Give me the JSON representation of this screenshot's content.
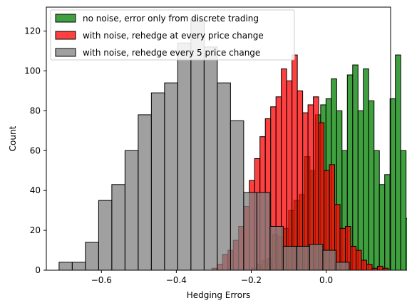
{
  "chart_data": {
    "type": "bar",
    "title": "",
    "xlabel": "Hedging Errors",
    "ylabel": "Count",
    "xlim": [
      -0.747,
      0.172
    ],
    "ylim": [
      0,
      132
    ],
    "xticks": [
      -0.6,
      -0.4,
      -0.2,
      0.0
    ],
    "xtick_labels": [
      "−0.6",
      "−0.4",
      "−0.2",
      "0.0"
    ],
    "yticks": [
      0,
      20,
      40,
      60,
      80,
      100,
      120
    ],
    "ytick_labels": [
      "0",
      "20",
      "40",
      "60",
      "80",
      "100",
      "120"
    ],
    "grid": false,
    "legend_position": "top-left",
    "series": [
      {
        "name": "no noise, error only from discrete trading",
        "color": "#008000",
        "bin_start": -0.2,
        "bin_width": 0.01425,
        "values": [
          1,
          3,
          5,
          6,
          18,
          17,
          21,
          30,
          35,
          38,
          57,
          50,
          78,
          83,
          86,
          96,
          80,
          60,
          98,
          103,
          80,
          101,
          85,
          60,
          43,
          48,
          86,
          108,
          60,
          26,
          9,
          5
        ]
      },
      {
        "name": "with noise, rehedge at every price change",
        "color": "#ff0000",
        "bin_start": -0.305,
        "bin_width": 0.01425,
        "values": [
          1,
          3,
          8,
          10,
          15,
          22,
          32,
          45,
          56,
          67,
          76,
          82,
          87,
          101,
          95,
          108,
          90,
          79,
          83,
          87,
          74,
          50,
          53,
          33,
          21,
          22,
          12,
          10,
          5,
          3,
          1,
          2,
          1
        ]
      },
      {
        "name": "with noise, rehedge every 5 price change",
        "color": "#808080",
        "bin_start": -0.713,
        "bin_width": 0.0352,
        "values": [
          4,
          4,
          14,
          35,
          43,
          60,
          78,
          89,
          94,
          114,
          126,
          112,
          94,
          75,
          39,
          39,
          22,
          12,
          12,
          13,
          10,
          4
        ]
      }
    ]
  }
}
